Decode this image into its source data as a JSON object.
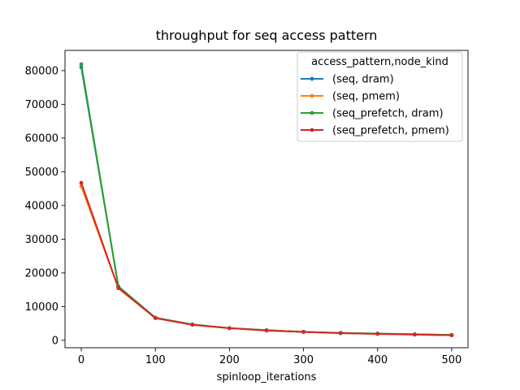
{
  "chart_data": {
    "type": "line",
    "title": "throughput for seq access pattern",
    "xlabel": "spinloop_iterations",
    "ylabel": "",
    "xlim": [
      -22,
      522
    ],
    "ylim": [
      -2200,
      86000
    ],
    "xticks": [
      0,
      100,
      200,
      300,
      400,
      500
    ],
    "yticks": [
      0,
      10000,
      20000,
      30000,
      40000,
      50000,
      60000,
      70000,
      80000
    ],
    "grid": false,
    "legend": {
      "title": "access_pattern,node_kind",
      "placement": "top-right"
    },
    "x": [
      0,
      50,
      100,
      150,
      200,
      250,
      300,
      350,
      400,
      450,
      500
    ],
    "series": [
      {
        "name": "(seq, dram)",
        "color": "#1f77b4",
        "values": [
          81000,
          16000,
          6700,
          4700,
          3600,
          3000,
          2500,
          2200,
          2000,
          1800,
          1600
        ]
      },
      {
        "name": "(seq, pmem)",
        "color": "#ff7f0e",
        "values": [
          45700,
          15500,
          6600,
          4600,
          3600,
          3000,
          2500,
          2200,
          1900,
          1700,
          1500
        ]
      },
      {
        "name": "(seq_prefetch, dram)",
        "color": "#2ca02c",
        "values": [
          81900,
          16000,
          6700,
          4700,
          3600,
          3000,
          2500,
          2200,
          2000,
          1800,
          1600
        ]
      },
      {
        "name": "(seq_prefetch, pmem)",
        "color": "#d62728",
        "values": [
          46700,
          15500,
          6600,
          4600,
          3600,
          2900,
          2500,
          2100,
          1900,
          1700,
          1500
        ]
      }
    ]
  }
}
